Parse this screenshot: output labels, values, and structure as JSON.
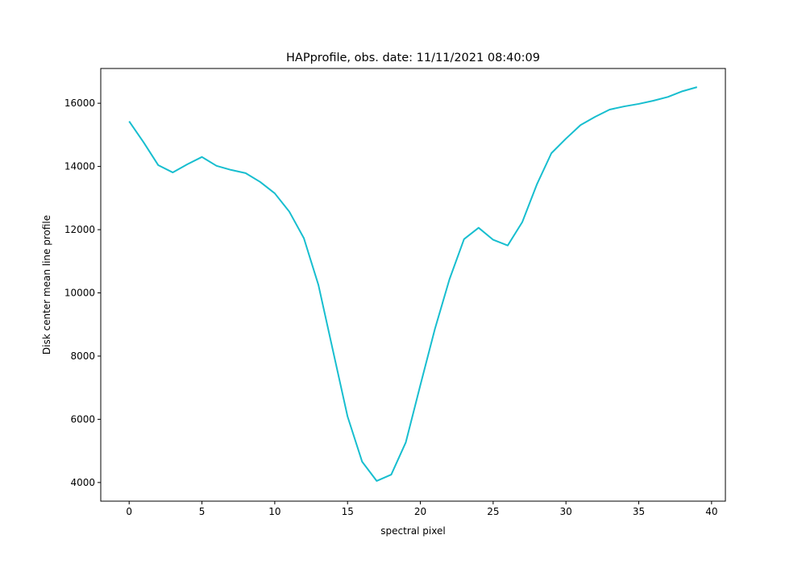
{
  "chart_data": {
    "type": "line",
    "title": "HAPprofile, obs. date: 11/11/2021 08:40:09",
    "xlabel": "spectral pixel",
    "ylabel": "Disk center mean line profile",
    "color": "#17becf",
    "x": [
      0,
      1,
      2,
      3,
      4,
      5,
      6,
      7,
      8,
      9,
      10,
      11,
      12,
      13,
      14,
      15,
      16,
      17,
      18,
      19,
      20,
      21,
      22,
      23,
      24,
      25,
      26,
      27,
      28,
      29,
      30,
      31,
      32,
      33,
      34,
      35,
      36,
      37,
      38,
      39
    ],
    "values": [
      15430,
      14760,
      14040,
      13810,
      14070,
      14300,
      14020,
      13890,
      13790,
      13510,
      13150,
      12570,
      11730,
      10250,
      8170,
      6090,
      4660,
      4050,
      4250,
      5270,
      7080,
      8860,
      10430,
      11700,
      12060,
      11680,
      11500,
      12240,
      13430,
      14420,
      14880,
      15310,
      15570,
      15800,
      15900,
      15980,
      16080,
      16200,
      16380,
      16510
    ],
    "xlim": [
      -1.95,
      40.95
    ],
    "ylim": [
      3410,
      17100
    ],
    "xticks": [
      0,
      5,
      10,
      15,
      20,
      25,
      30,
      35,
      40
    ],
    "yticks": [
      4000,
      6000,
      8000,
      10000,
      12000,
      14000,
      16000
    ],
    "grid": false
  }
}
